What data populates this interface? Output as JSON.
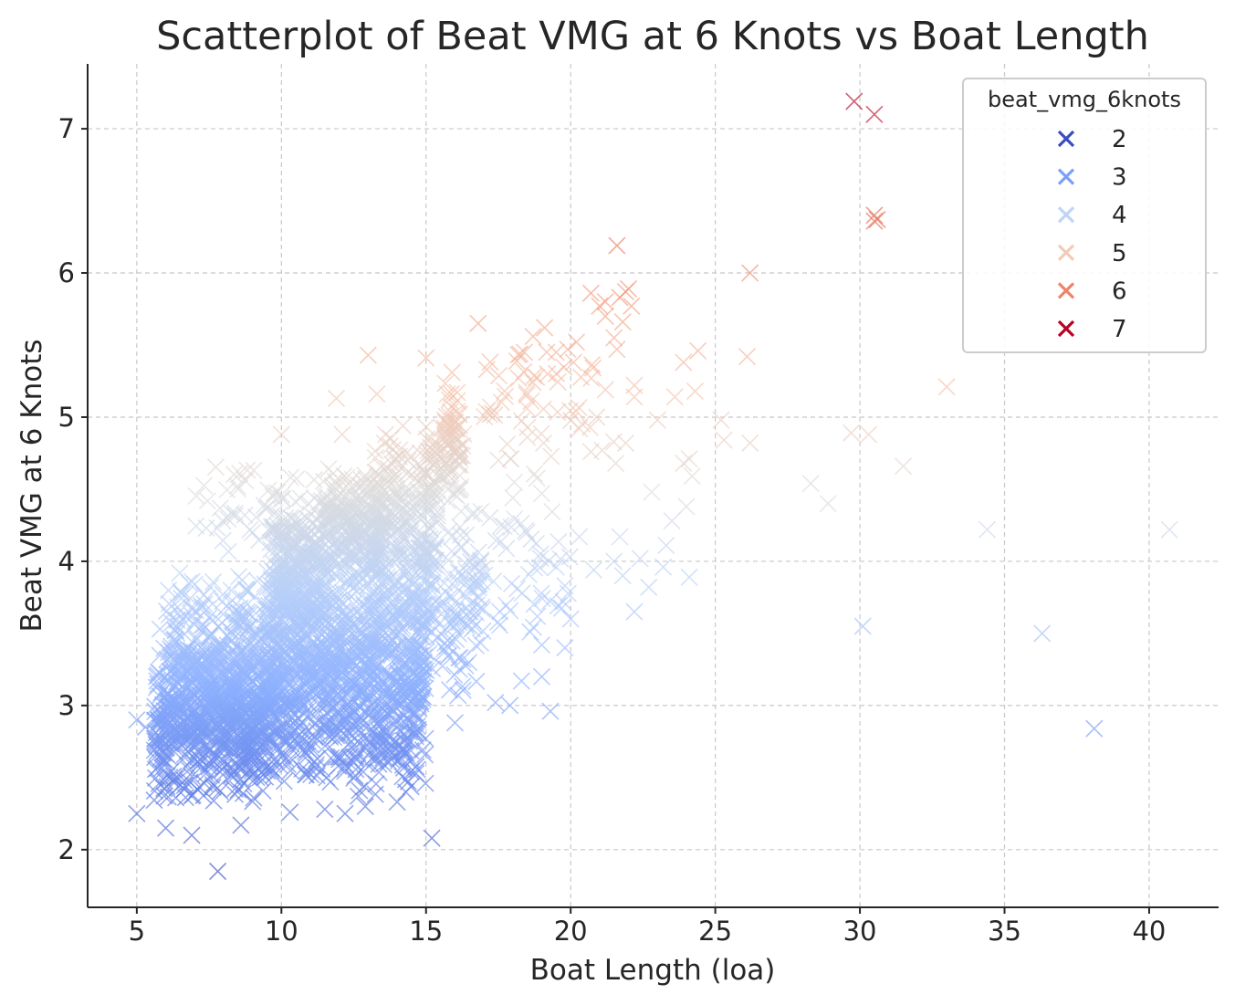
{
  "chart_data": {
    "type": "scatter",
    "title": "Scatterplot of Beat VMG at 6 Knots vs Boat Length",
    "xlabel": "Boat Length (loa)",
    "ylabel": "Beat VMG at 6 Knots",
    "xlim": [
      3.3,
      42.4
    ],
    "ylim": [
      1.6,
      7.45
    ],
    "x_ticks": [
      5,
      10,
      15,
      20,
      25,
      30,
      35,
      40
    ],
    "y_ticks": [
      2,
      3,
      4,
      5,
      6,
      7
    ],
    "grid": true,
    "marker": "x",
    "colormap": "coolwarm",
    "hue_range": [
      1.8,
      7.2
    ],
    "legend": {
      "title": "beat_vmg_6knots",
      "position": "top-right",
      "entries": [
        {
          "label": "2",
          "color": "#3b4cc0"
        },
        {
          "label": "3",
          "color": "#7b9ff9"
        },
        {
          "label": "4",
          "color": "#c0d4f5"
        },
        {
          "label": "5",
          "color": "#f2cbb7"
        },
        {
          "label": "6",
          "color": "#ee8468"
        },
        {
          "label": "7",
          "color": "#b40426"
        }
      ]
    },
    "dense_clusters": [
      {
        "x": [
          5.6,
          9.6
        ],
        "y": [
          2.3,
          3.5
        ],
        "n": 650
      },
      {
        "x": [
          6.0,
          9.6
        ],
        "y": [
          2.6,
          3.95
        ],
        "n": 350
      },
      {
        "x": [
          9.5,
          15.0
        ],
        "y": [
          2.35,
          4.3
        ],
        "n": 1400
      },
      {
        "x": [
          9.6,
          11.5
        ],
        "y": [
          3.5,
          4.4
        ],
        "n": 180
      },
      {
        "x": [
          11.5,
          13.5
        ],
        "y": [
          3.9,
          4.65
        ],
        "n": 220
      },
      {
        "x": [
          13.2,
          15.4
        ],
        "y": [
          3.7,
          4.9
        ],
        "n": 200
      },
      {
        "x": [
          14.8,
          17.0
        ],
        "y": [
          3.0,
          4.3
        ],
        "n": 120
      },
      {
        "x": [
          15.0,
          16.3
        ],
        "y": [
          4.3,
          5.0
        ],
        "n": 70
      },
      {
        "x": [
          15.6,
          16.2
        ],
        "y": [
          4.6,
          5.3
        ],
        "n": 40
      },
      {
        "x": [
          7.0,
          13.0
        ],
        "y": [
          4.0,
          4.7
        ],
        "n": 60
      },
      {
        "x": [
          16.0,
          20.0
        ],
        "y": [
          3.4,
          4.7
        ],
        "n": 60
      },
      {
        "x": [
          17.0,
          22.0
        ],
        "y": [
          4.5,
          5.6
        ],
        "n": 50
      }
    ],
    "points": [
      [
        7.8,
        1.85
      ],
      [
        15.2,
        2.08
      ],
      [
        14.0,
        2.33
      ],
      [
        6.9,
        2.1
      ],
      [
        6.0,
        2.15
      ],
      [
        12.7,
        2.41
      ],
      [
        11.5,
        2.28
      ],
      [
        12.2,
        2.25
      ],
      [
        10.3,
        2.26
      ],
      [
        8.6,
        2.17
      ],
      [
        5.0,
        2.25
      ],
      [
        5.0,
        2.9
      ],
      [
        5.3,
        2.85
      ],
      [
        5.8,
        3.53
      ],
      [
        6.8,
        3.85
      ],
      [
        7.4,
        4.23
      ],
      [
        9.0,
        4.2
      ],
      [
        8.5,
        4.5
      ],
      [
        14.3,
        2.4
      ],
      [
        12.9,
        2.3
      ],
      [
        16.0,
        2.88
      ],
      [
        17.4,
        3.02
      ],
      [
        17.9,
        3.0
      ],
      [
        18.3,
        3.17
      ],
      [
        19.3,
        2.96
      ],
      [
        19.0,
        3.2
      ],
      [
        19.0,
        3.42
      ],
      [
        18.6,
        3.51
      ],
      [
        19.8,
        3.4
      ],
      [
        20.0,
        3.6
      ],
      [
        19.8,
        3.83
      ],
      [
        19.5,
        3.96
      ],
      [
        20.8,
        3.94
      ],
      [
        21.5,
        4.0
      ],
      [
        21.8,
        3.9
      ],
      [
        22.2,
        3.65
      ],
      [
        22.7,
        3.82
      ],
      [
        21.7,
        4.17
      ],
      [
        20.3,
        4.17
      ],
      [
        22.4,
        4.02
      ],
      [
        23.2,
        3.96
      ],
      [
        23.3,
        4.11
      ],
      [
        24.1,
        3.89
      ],
      [
        24.0,
        4.38
      ],
      [
        23.5,
        4.28
      ],
      [
        24.2,
        4.59
      ],
      [
        23.9,
        4.68
      ],
      [
        24.1,
        4.71
      ],
      [
        22.8,
        4.48
      ],
      [
        25.3,
        4.84
      ],
      [
        26.2,
        4.82
      ],
      [
        23.0,
        4.98
      ],
      [
        23.6,
        5.14
      ],
      [
        23.9,
        5.38
      ],
      [
        24.3,
        5.18
      ],
      [
        24.4,
        5.46
      ],
      [
        26.1,
        5.42
      ],
      [
        25.2,
        4.98
      ],
      [
        22.2,
        5.22
      ],
      [
        22.2,
        5.14
      ],
      [
        21.9,
        4.82
      ],
      [
        21.2,
        5.19
      ],
      [
        20.7,
        4.76
      ],
      [
        20.3,
        4.92
      ],
      [
        20.9,
        5.0
      ],
      [
        28.3,
        4.54
      ],
      [
        28.9,
        4.4
      ],
      [
        29.7,
        4.89
      ],
      [
        30.3,
        4.88
      ],
      [
        31.5,
        4.66
      ],
      [
        34.4,
        4.22
      ],
      [
        40.7,
        4.22
      ],
      [
        30.1,
        3.55
      ],
      [
        36.3,
        3.5
      ],
      [
        38.1,
        2.84
      ],
      [
        33.0,
        5.21
      ],
      [
        26.2,
        6.0
      ],
      [
        21.6,
        6.19
      ],
      [
        21.9,
        5.87
      ],
      [
        22.1,
        5.77
      ],
      [
        21.7,
        5.83
      ],
      [
        21.8,
        5.66
      ],
      [
        21.5,
        5.55
      ],
      [
        21.6,
        5.47
      ],
      [
        21.2,
        5.7
      ],
      [
        21.0,
        5.77
      ],
      [
        20.7,
        5.86
      ],
      [
        22.0,
        5.89
      ],
      [
        21.2,
        5.8
      ],
      [
        19.9,
        5.47
      ],
      [
        19.1,
        5.62
      ],
      [
        18.7,
        5.56
      ],
      [
        18.4,
        5.45
      ],
      [
        16.8,
        5.65
      ],
      [
        19.5,
        5.45
      ],
      [
        20.2,
        5.52
      ],
      [
        20.1,
        5.38
      ],
      [
        19.2,
        5.3
      ],
      [
        18.7,
        5.24
      ],
      [
        18.2,
        5.27
      ],
      [
        17.1,
        5.33
      ],
      [
        15.9,
        5.31
      ],
      [
        15.8,
        5.12
      ],
      [
        15.0,
        5.41
      ],
      [
        13.0,
        5.43
      ],
      [
        13.3,
        5.16
      ],
      [
        11.9,
        5.13
      ],
      [
        10.0,
        4.88
      ],
      [
        12.1,
        4.88
      ],
      [
        13.6,
        4.88
      ],
      [
        14.2,
        4.94
      ],
      [
        19.0,
        4.47
      ],
      [
        18.0,
        4.44
      ],
      [
        17.5,
        4.7
      ],
      [
        18.5,
        4.86
      ],
      [
        29.8,
        7.19
      ],
      [
        30.5,
        7.1
      ],
      [
        30.5,
        6.4
      ],
      [
        30.6,
        6.37
      ],
      [
        30.5,
        6.36
      ]
    ]
  }
}
